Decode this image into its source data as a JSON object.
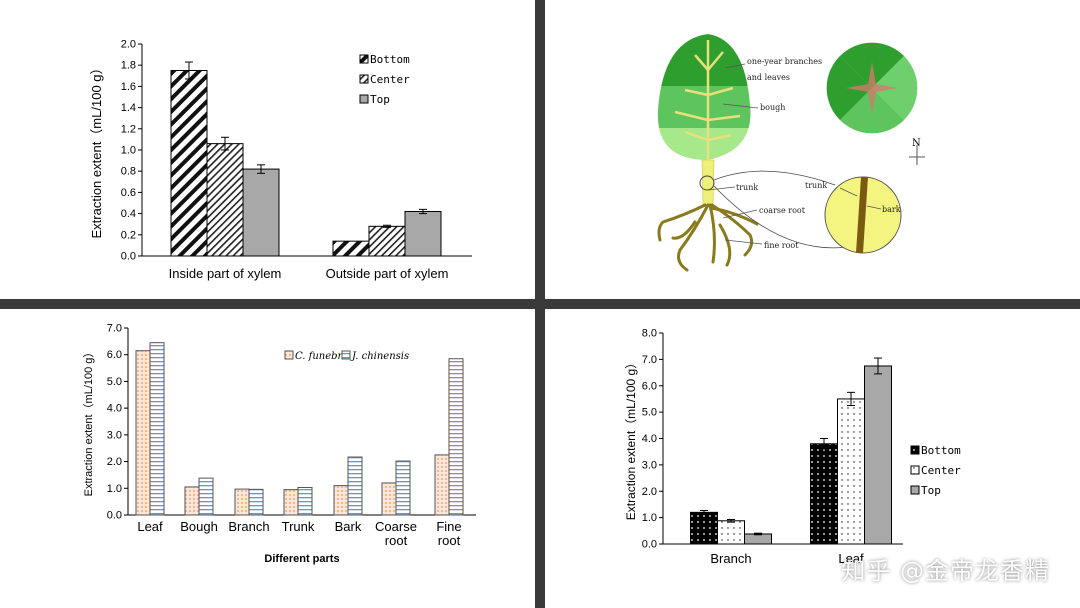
{
  "chart_data": [
    {
      "type": "bar",
      "ylabel": "Extraction extent（mL/100 g）",
      "ylim": [
        0,
        2.0
      ],
      "yticks": [
        "0.0",
        "0.2",
        "0.4",
        "0.6",
        "0.8",
        "1.0",
        "1.2",
        "1.4",
        "1.6",
        "1.8",
        "2.0"
      ],
      "categories": [
        "Inside part of xylem",
        "Outside part of xylem"
      ],
      "series": [
        {
          "name": "Bottom",
          "values": [
            1.75,
            0.14
          ],
          "errors": [
            0.08,
            0.0
          ]
        },
        {
          "name": "Center",
          "values": [
            1.06,
            0.28
          ],
          "errors": [
            0.06,
            0.01
          ]
        },
        {
          "name": "Top",
          "values": [
            0.82,
            0.42
          ],
          "errors": [
            0.04,
            0.02
          ]
        }
      ],
      "legend": "top-right",
      "grid": false
    },
    {
      "type": "bar",
      "ylabel": "Extraction extent（mL/100 g）",
      "xlabel": "Different parts",
      "ylim": [
        0,
        7.0
      ],
      "yticks": [
        "0.0",
        "1.0",
        "2.0",
        "3.0",
        "4.0",
        "5.0",
        "6.0",
        "7.0"
      ],
      "categories": [
        "Leaf",
        "Bough",
        "Branch",
        "Trunk",
        "Bark",
        "Coarse root",
        "Fine root"
      ],
      "series": [
        {
          "name": "C. funebris",
          "values": [
            6.15,
            1.05,
            0.97,
            0.95,
            1.1,
            1.2,
            2.25
          ]
        },
        {
          "name": "J. chinensis",
          "values": [
            6.45,
            1.38,
            0.96,
            1.03,
            2.17,
            2.02,
            5.85
          ]
        }
      ],
      "legend": "top-right",
      "grid": false
    },
    {
      "type": "bar",
      "ylabel": "Extraction extent（mL/100 g）",
      "ylim": [
        0,
        8.0
      ],
      "yticks": [
        "0.0",
        "1.0",
        "2.0",
        "3.0",
        "4.0",
        "5.0",
        "6.0",
        "7.0",
        "8.0"
      ],
      "categories": [
        "Branch",
        "Leaf"
      ],
      "series": [
        {
          "name": "Bottom",
          "values": [
            1.2,
            3.8
          ],
          "errors": [
            0.07,
            0.2
          ]
        },
        {
          "name": "Center",
          "values": [
            0.88,
            5.5
          ],
          "errors": [
            0.05,
            0.25
          ]
        },
        {
          "name": "Top",
          "values": [
            0.38,
            6.75
          ],
          "errors": [
            0.03,
            0.3
          ]
        }
      ],
      "legend": "right",
      "grid": false
    }
  ],
  "diagram": {
    "labels": {
      "branches": "one-year branches",
      "branches2": "and leaves",
      "bough": "bough",
      "trunk": "trunk",
      "coarse_root": "coarse root",
      "fine_root": "fine root",
      "trunk_detail": "trunk",
      "bark": "bark",
      "north": "N"
    }
  },
  "watermark": "知乎 @金帝龙香精",
  "colors": {
    "dark_green": "#2e9e2e",
    "mid_green": "#5ec45e",
    "light_green": "#a6e88a",
    "trunk_yellow": "#eef07a",
    "root_brown": "#8a7a1c",
    "bark_brown": "#7a5a10",
    "bar_gray": "#a8a8a8",
    "bar_peach": "#f2c6a6",
    "bar_blue": "#9fb9d9"
  }
}
